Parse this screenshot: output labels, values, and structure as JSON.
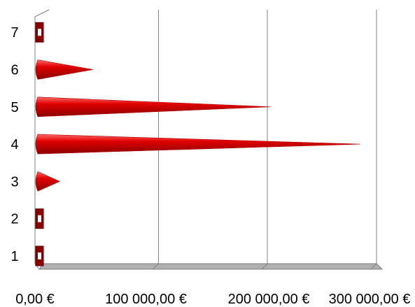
{
  "chart_data": {
    "type": "bar",
    "orientation": "horizontal",
    "style": "3d-cone",
    "categories": [
      "1",
      "2",
      "3",
      "4",
      "5",
      "6",
      "7"
    ],
    "values": [
      0,
      0,
      20000,
      285000,
      203000,
      47000,
      0
    ],
    "x_tick_labels": [
      "0,00 €",
      "100 000,00 €",
      "200 000,00 €",
      "300 000,00 €"
    ],
    "x_tick_values": [
      0,
      100000,
      200000,
      300000
    ],
    "xlim": [
      0,
      300000
    ],
    "grid": true,
    "legend": "none",
    "colors": {
      "bar": "#e00000",
      "bar_dark": "#8a0000",
      "bar_light": "#ff6a6a",
      "grid": "#808080",
      "floor": "#b0b0b0"
    }
  }
}
